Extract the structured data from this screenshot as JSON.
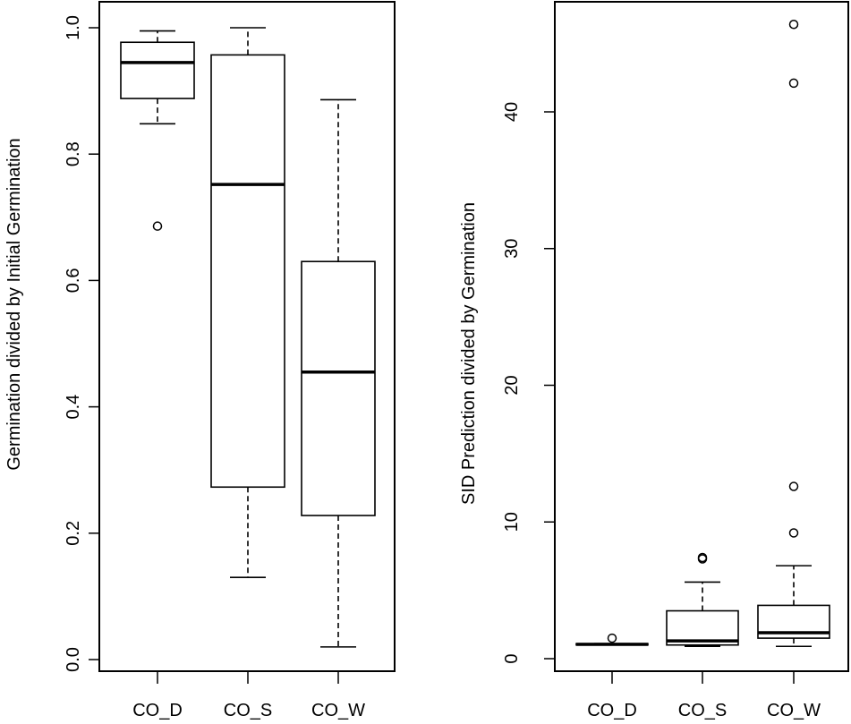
{
  "chart_data": [
    {
      "type": "box",
      "title": "",
      "xlabel": "",
      "ylabel": "Germination divided by Initial Germination",
      "ylim": [
        0.0,
        1.0
      ],
      "yticks": [
        "0.0",
        "0.2",
        "0.4",
        "0.6",
        "0.8",
        "1.0"
      ],
      "categories": [
        "CO_D",
        "CO_S",
        "CO_W"
      ],
      "grid": false,
      "boxes": [
        {
          "name": "CO_D",
          "whisker_low": 0.848,
          "q1": 0.888,
          "median": 0.945,
          "q3": 0.977,
          "whisker_high": 0.995,
          "outliers": [
            0.686
          ]
        },
        {
          "name": "CO_S",
          "whisker_low": 0.13,
          "q1": 0.273,
          "median": 0.752,
          "q3": 0.957,
          "whisker_high": 1.0,
          "outliers": []
        },
        {
          "name": "CO_W",
          "whisker_low": 0.02,
          "q1": 0.228,
          "median": 0.455,
          "q3": 0.63,
          "whisker_high": 0.886,
          "outliers": []
        }
      ]
    },
    {
      "type": "box",
      "title": "",
      "xlabel": "",
      "ylabel": "SID Prediction divided by Germination",
      "ylim": [
        0,
        47
      ],
      "yticks": [
        "0",
        "10",
        "20",
        "30",
        "40"
      ],
      "categories": [
        "CO_D",
        "CO_S",
        "CO_W"
      ],
      "grid": false,
      "boxes": [
        {
          "name": "CO_D",
          "whisker_low": 1.0,
          "q1": 1.0,
          "median": 1.05,
          "q3": 1.1,
          "whisker_high": 1.1,
          "outliers": [
            1.5
          ]
        },
        {
          "name": "CO_S",
          "whisker_low": 0.9,
          "q1": 1.0,
          "median": 1.3,
          "q3": 3.5,
          "whisker_high": 5.6,
          "outliers": [
            7.3,
            7.4
          ]
        },
        {
          "name": "CO_W",
          "whisker_low": 0.9,
          "q1": 1.5,
          "median": 1.9,
          "q3": 3.9,
          "whisker_high": 6.8,
          "outliers": [
            9.2,
            12.6,
            42.1,
            46.4
          ]
        }
      ]
    }
  ]
}
